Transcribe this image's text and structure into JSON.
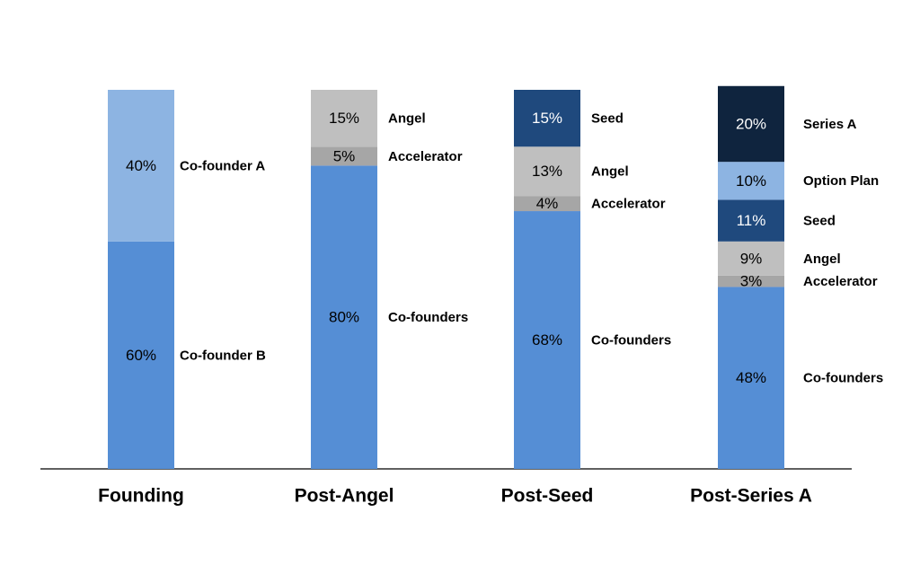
{
  "chart_data": {
    "type": "stacked_bar",
    "categories": [
      "Founding",
      "Post-Angel",
      "Post-Seed",
      "Post-Series A"
    ],
    "ylim": [
      0,
      100
    ],
    "series": [
      {
        "name": "Co-founder B",
        "color": "#558ed5",
        "values": [
          60,
          null,
          null,
          null
        ],
        "value_labels": [
          "60%",
          null,
          null,
          null
        ]
      },
      {
        "name": "Co-founder A",
        "color": "#8db4e2",
        "values": [
          40,
          null,
          null,
          null
        ],
        "value_labels": [
          "40%",
          null,
          null,
          null
        ]
      },
      {
        "name": "Co-founders",
        "color": "#558ed5",
        "values": [
          null,
          80,
          68,
          48
        ],
        "value_labels": [
          null,
          "80%",
          "68%",
          "48%"
        ]
      },
      {
        "name": "Accelerator",
        "color": "#a6a6a6",
        "values": [
          null,
          5,
          4,
          3
        ],
        "value_labels": [
          null,
          "5%",
          "4%",
          "3%"
        ]
      },
      {
        "name": "Angel",
        "color": "#bfbfbf",
        "values": [
          null,
          15,
          13,
          9
        ],
        "value_labels": [
          null,
          "15%",
          "13%",
          "9%"
        ]
      },
      {
        "name": "Seed",
        "color": "#1f497d",
        "values": [
          null,
          null,
          15,
          11
        ],
        "value_labels": [
          null,
          null,
          "15%",
          "11%"
        ]
      },
      {
        "name": "Option Plan",
        "color": "#8db4e2",
        "values": [
          null,
          null,
          null,
          10
        ],
        "value_labels": [
          null,
          null,
          null,
          "10%"
        ]
      },
      {
        "name": "Series A",
        "color": "#0f243e",
        "values": [
          null,
          null,
          null,
          20
        ],
        "value_labels": [
          null,
          null,
          null,
          "20%"
        ]
      }
    ]
  }
}
